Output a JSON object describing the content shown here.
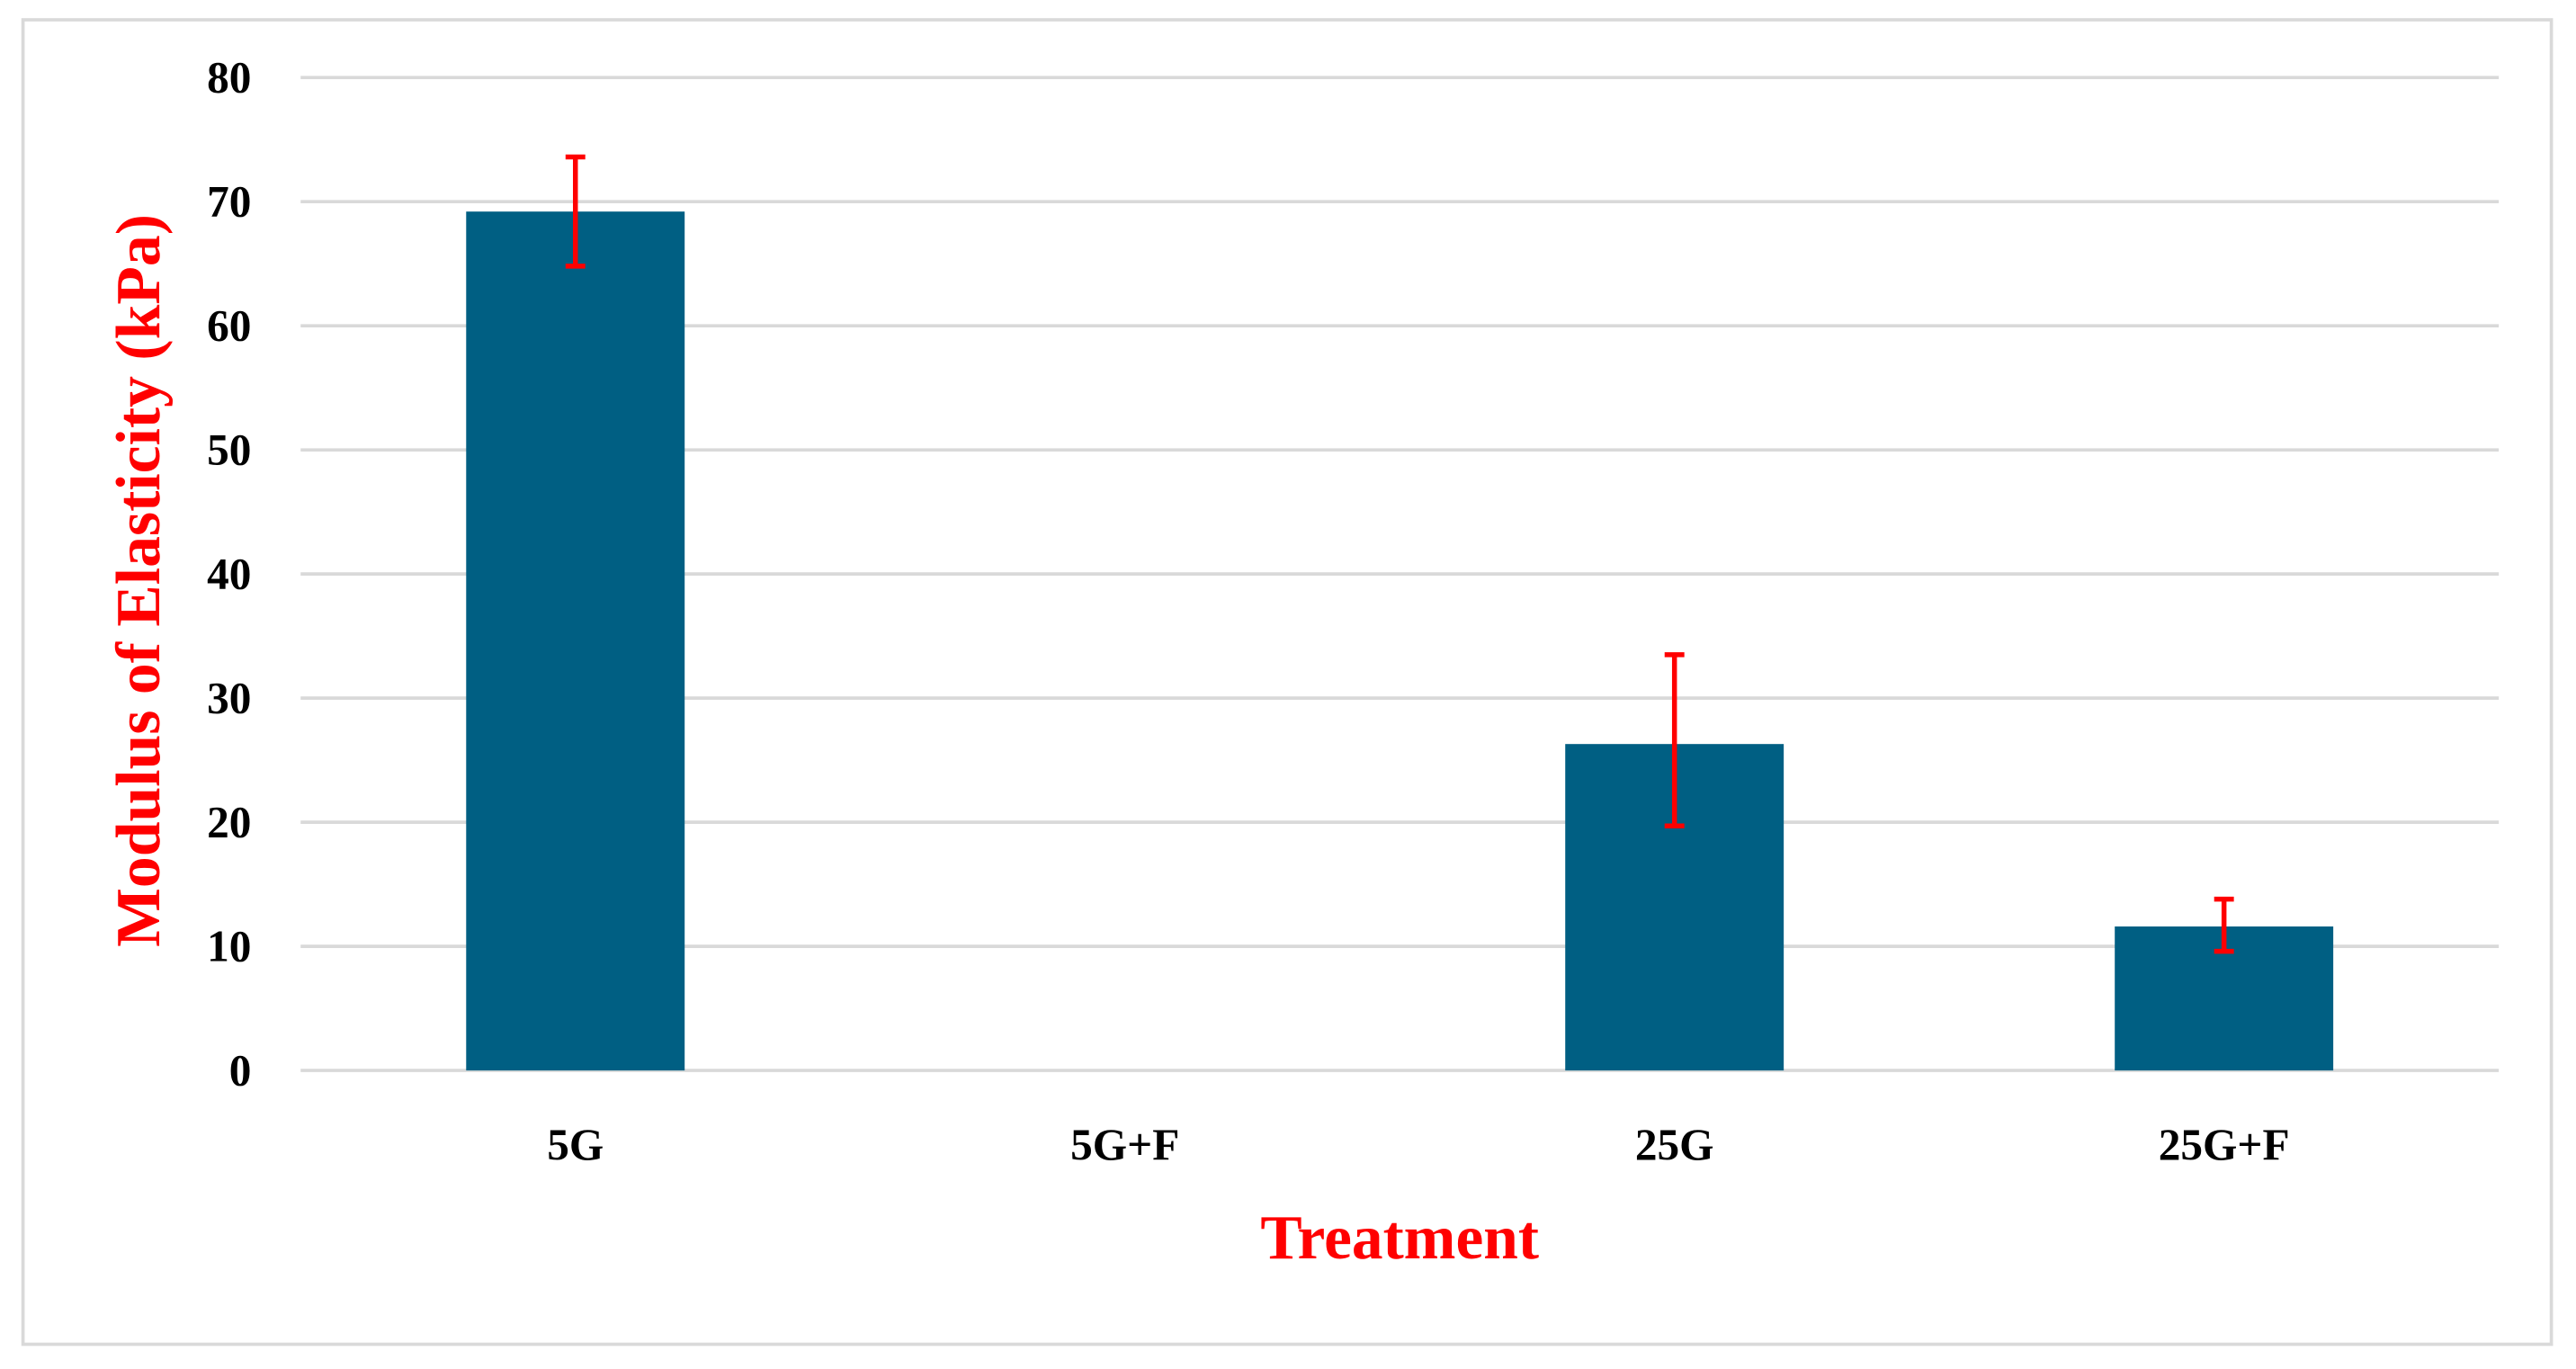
{
  "chart_data": {
    "type": "bar",
    "title": "",
    "xlabel": "Treatment",
    "ylabel": "Modulus of Elasticity (kPa)",
    "categories": [
      "5G",
      "5G+F",
      "25G",
      "25G+F"
    ],
    "values": [
      69.2,
      null,
      26.3,
      11.6
    ],
    "error_upper": [
      73.6,
      null,
      33.5,
      13.8
    ],
    "error_lower": [
      64.8,
      null,
      19.7,
      9.6
    ],
    "ylim": [
      0,
      80
    ],
    "yticks": [
      0,
      10,
      20,
      30,
      40,
      50,
      60,
      70,
      80
    ],
    "grid": true,
    "legend": "none",
    "colors": {
      "bar": "#005f83",
      "error_bar": "#ff0000",
      "axis_title": "#ff0000",
      "tick_label": "#000000",
      "grid": "#d9d9d9"
    }
  }
}
